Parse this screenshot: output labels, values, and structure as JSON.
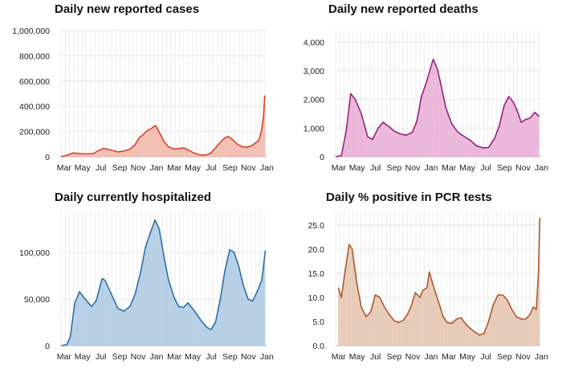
{
  "x_months": [
    "Mar",
    "May",
    "Jul",
    "Sep",
    "Nov",
    "Jan",
    "Mar",
    "May",
    "Jul",
    "Sep",
    "Nov",
    "Jan"
  ],
  "chart_data": [
    {
      "type": "area",
      "title": "Daily new reported cases",
      "xlabel": "",
      "ylabel": "",
      "x_ticks": [
        "Mar",
        "May",
        "Jul",
        "Sep",
        "Nov",
        "Jan",
        "Mar",
        "May",
        "Jul",
        "Sep",
        "Nov",
        "Jan"
      ],
      "y_ticks": [
        0,
        200000,
        400000,
        600000,
        800000,
        1000000
      ],
      "y_tick_labels": [
        "0",
        "200,000",
        "400,000",
        "600,000",
        "800,000",
        "1,000,000"
      ],
      "ylim": [
        0,
        1000000
      ],
      "grid": true,
      "color": "#d9422b",
      "fill": "#f2b3a6",
      "series": [
        {
          "x": [
            "2020-03-01",
            "2020-03-20",
            "2020-04-10",
            "2020-05-01",
            "2020-05-25",
            "2020-06-15",
            "2020-07-05",
            "2020-07-20",
            "2020-08-10",
            "2020-09-05",
            "2020-09-25",
            "2020-10-15",
            "2020-11-01",
            "2020-11-15",
            "2020-11-28",
            "2020-12-10",
            "2020-12-25",
            "2021-01-08",
            "2021-01-20",
            "2021-02-05",
            "2021-02-20",
            "2021-03-10",
            "2021-03-25",
            "2021-04-10",
            "2021-04-25",
            "2021-05-15",
            "2021-06-05",
            "2021-06-25",
            "2021-07-10",
            "2021-07-25",
            "2021-08-10",
            "2021-08-25",
            "2021-09-05",
            "2021-09-20",
            "2021-10-05",
            "2021-10-20",
            "2021-11-05",
            "2021-11-20",
            "2021-12-05",
            "2021-12-15",
            "2021-12-24",
            "2021-12-31",
            "2022-01-04",
            "2022-01-06"
          ],
          "y": [
            0,
            12000,
            30000,
            25000,
            22000,
            25000,
            50000,
            67000,
            55000,
            38000,
            45000,
            60000,
            95000,
            150000,
            175000,
            205000,
            225000,
            248000,
            195000,
            120000,
            78000,
            60000,
            65000,
            70000,
            55000,
            30000,
            13000,
            14000,
            30000,
            70000,
            115000,
            150000,
            160000,
            135000,
            100000,
            80000,
            75000,
            85000,
            110000,
            130000,
            200000,
            320000,
            480000,
            470000
          ]
        }
      ]
    },
    {
      "type": "area",
      "title": "Daily new reported deaths",
      "xlabel": "",
      "ylabel": "",
      "x_ticks": [
        "Mar",
        "May",
        "Jul",
        "Sep",
        "Nov",
        "Jan",
        "Mar",
        "May",
        "Jul",
        "Sep",
        "Nov",
        "Jan"
      ],
      "y_ticks": [
        0,
        1000,
        2000,
        3000,
        4000
      ],
      "y_tick_labels": [
        "0",
        "1,000",
        "2,000",
        "3,000",
        "4,000"
      ],
      "ylim": [
        0,
        4400
      ],
      "grid": true,
      "color": "#9c1f7e",
      "fill": "#e7a9d3",
      "series": [
        {
          "x": [
            "2020-03-01",
            "2020-03-20",
            "2020-04-05",
            "2020-04-20",
            "2020-05-05",
            "2020-05-25",
            "2020-06-15",
            "2020-07-01",
            "2020-07-20",
            "2020-08-05",
            "2020-08-25",
            "2020-09-10",
            "2020-09-30",
            "2020-10-20",
            "2020-11-10",
            "2020-11-25",
            "2020-12-10",
            "2020-12-25",
            "2021-01-08",
            "2021-01-18",
            "2021-02-01",
            "2021-02-15",
            "2021-03-01",
            "2021-03-20",
            "2021-04-10",
            "2021-05-01",
            "2021-05-20",
            "2021-06-10",
            "2021-07-01",
            "2021-07-20",
            "2021-08-10",
            "2021-08-25",
            "2021-09-10",
            "2021-09-25",
            "2021-10-10",
            "2021-10-25",
            "2021-11-05",
            "2021-11-20",
            "2021-12-05",
            "2021-12-20",
            "2022-01-04"
          ],
          "y": [
            0,
            40,
            900,
            2200,
            2000,
            1500,
            700,
            600,
            1000,
            1200,
            1050,
            900,
            800,
            750,
            850,
            1250,
            2100,
            2550,
            3050,
            3400,
            3050,
            2400,
            1700,
            1150,
            850,
            700,
            580,
            380,
            310,
            320,
            660,
            1100,
            1800,
            2100,
            1900,
            1550,
            1200,
            1300,
            1350,
            1550,
            1400
          ]
        }
      ]
    },
    {
      "type": "area",
      "title": "Daily currently hospitalized",
      "xlabel": "",
      "ylabel": "",
      "x_ticks": [
        "Mar",
        "May",
        "Jul",
        "Sep",
        "Nov",
        "Jan",
        "Mar",
        "May",
        "Jul",
        "Sep",
        "Nov",
        "Jan"
      ],
      "y_ticks": [
        0,
        50000,
        100000
      ],
      "y_tick_labels": [
        "0",
        "50,000",
        "100,000"
      ],
      "ylim": [
        0,
        145000
      ],
      "grid": true,
      "color": "#2f6fa8",
      "fill": "#a9c7e2",
      "series": [
        {
          "x": [
            "2020-03-01",
            "2020-03-20",
            "2020-04-01",
            "2020-04-15",
            "2020-05-01",
            "2020-05-20",
            "2020-06-10",
            "2020-06-25",
            "2020-07-15",
            "2020-07-25",
            "2020-08-15",
            "2020-09-05",
            "2020-09-25",
            "2020-10-15",
            "2020-11-01",
            "2020-11-20",
            "2020-12-05",
            "2020-12-20",
            "2021-01-06",
            "2021-01-20",
            "2021-02-05",
            "2021-02-20",
            "2021-03-10",
            "2021-03-25",
            "2021-04-10",
            "2021-04-25",
            "2021-05-15",
            "2021-06-05",
            "2021-06-25",
            "2021-07-10",
            "2021-07-25",
            "2021-08-10",
            "2021-08-25",
            "2021-09-10",
            "2021-09-25",
            "2021-10-10",
            "2021-10-25",
            "2021-11-10",
            "2021-11-25",
            "2021-12-10",
            "2021-12-25",
            "2022-01-06"
          ],
          "y": [
            0,
            1000,
            10000,
            45000,
            58000,
            50000,
            42000,
            48000,
            72000,
            70000,
            55000,
            40000,
            37000,
            42000,
            55000,
            80000,
            105000,
            120000,
            135000,
            125000,
            95000,
            70000,
            52000,
            42000,
            41000,
            46000,
            38000,
            28000,
            20000,
            17000,
            25000,
            50000,
            80000,
            103000,
            100000,
            85000,
            65000,
            50000,
            48000,
            58000,
            70000,
            102000
          ]
        }
      ]
    },
    {
      "type": "area",
      "title": "Daily % positive in PCR tests",
      "xlabel": "",
      "ylabel": "",
      "x_ticks": [
        "Mar",
        "May",
        "Jul",
        "Sep",
        "Nov",
        "Jan",
        "Mar",
        "May",
        "Jul",
        "Sep",
        "Nov",
        "Jan"
      ],
      "y_ticks": [
        0,
        5,
        10,
        15,
        20,
        25
      ],
      "y_tick_labels": [
        "0.0",
        "5.0",
        "10.0",
        "15.0",
        "20.0",
        "25.0"
      ],
      "ylim": [
        0,
        28
      ],
      "grid": true,
      "color": "#b0592c",
      "fill": "#e3c1ab",
      "series": [
        {
          "x": [
            "2020-03-10",
            "2020-03-20",
            "2020-04-05",
            "2020-04-15",
            "2020-04-25",
            "2020-05-10",
            "2020-05-25",
            "2020-06-10",
            "2020-06-25",
            "2020-07-10",
            "2020-07-25",
            "2020-08-10",
            "2020-08-25",
            "2020-09-10",
            "2020-09-25",
            "2020-10-10",
            "2020-10-25",
            "2020-11-05",
            "2020-11-20",
            "2020-12-05",
            "2020-12-15",
            "2020-12-28",
            "2021-01-05",
            "2021-01-20",
            "2021-02-05",
            "2021-02-20",
            "2021-03-05",
            "2021-03-20",
            "2021-04-05",
            "2021-04-20",
            "2021-05-05",
            "2021-05-20",
            "2021-06-05",
            "2021-06-20",
            "2021-07-05",
            "2021-07-20",
            "2021-08-05",
            "2021-08-20",
            "2021-09-05",
            "2021-09-20",
            "2021-10-05",
            "2021-10-20",
            "2021-11-05",
            "2021-11-20",
            "2021-12-05",
            "2021-12-15",
            "2021-12-25",
            "2022-01-01",
            "2022-01-06"
          ],
          "y": [
            12,
            10,
            17,
            21,
            20,
            13,
            8,
            6,
            7,
            10.5,
            10,
            8,
            6.5,
            5.2,
            4.8,
            5.2,
            6.5,
            8,
            11,
            10,
            11.5,
            12,
            15.3,
            12,
            9,
            6,
            4.8,
            4.6,
            5.5,
            5.8,
            4.5,
            3.6,
            2.8,
            2.2,
            2.5,
            5,
            8.5,
            10.5,
            10.5,
            9.5,
            7.5,
            6,
            5.5,
            5.5,
            6.5,
            8,
            7.5,
            15,
            26.5
          ]
        }
      ]
    }
  ]
}
